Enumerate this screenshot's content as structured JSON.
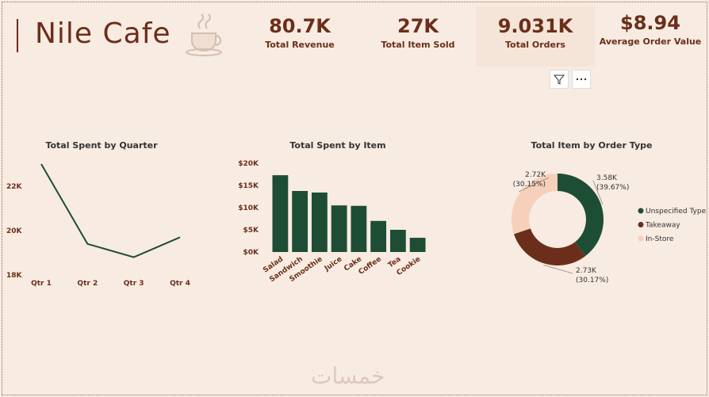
{
  "header": {
    "title": "Nile Cafe",
    "watermark": "خمسات"
  },
  "kpis": [
    {
      "value": "80.7K",
      "label": "Total Revenue"
    },
    {
      "value": "27K",
      "label": "Total Item Sold"
    },
    {
      "value": "9.031K",
      "label": "Total Orders"
    },
    {
      "value": "$8.94",
      "label": "Average Order Value"
    }
  ],
  "chart_data": [
    {
      "type": "line",
      "title": "Total Spent by Quarter",
      "categories": [
        "Qtr 1",
        "Qtr 2",
        "Qtr 3",
        "Qtr 4"
      ],
      "values": [
        23000,
        19400,
        18800,
        19700
      ],
      "color": "#1e4d35",
      "ylim": [
        18000,
        23200
      ],
      "yticks": [
        {
          "value": 18000,
          "label": "18K"
        },
        {
          "value": 20000,
          "label": "20K"
        },
        {
          "value": 22000,
          "label": "22K"
        }
      ]
    },
    {
      "type": "bar",
      "title": "Total Spent by Item",
      "categories": [
        "Salad",
        "Sandwich",
        "Smoothie",
        "Juice",
        "Cake",
        "Coffee",
        "Tea",
        "Cookie"
      ],
      "values": [
        17300,
        13750,
        13400,
        10500,
        10400,
        7000,
        5000,
        3200
      ],
      "color": "#1e4d35",
      "ylim": [
        0,
        20000
      ],
      "yticks": [
        {
          "value": 0,
          "label": "$0K"
        },
        {
          "value": 5000,
          "label": "$5K"
        },
        {
          "value": 10000,
          "label": "$10K"
        },
        {
          "value": 15000,
          "label": "$15K"
        },
        {
          "value": 20000,
          "label": "$20K"
        }
      ]
    },
    {
      "type": "pie",
      "title": "Total Item by Order Type",
      "categories": [
        "Unspecified Type",
        "Takeaway",
        "In-Store"
      ],
      "values": [
        3580,
        2730,
        2720
      ],
      "value_labels": [
        "3.58K",
        "2.73K",
        "2.72K"
      ],
      "percent_labels": [
        "(39.67%)",
        "(30.17%)",
        "(30.15%)"
      ],
      "colors": [
        "#1e4d35",
        "#6b2e1a",
        "#f6d0ba"
      ],
      "donut": true,
      "legend": "right"
    }
  ]
}
